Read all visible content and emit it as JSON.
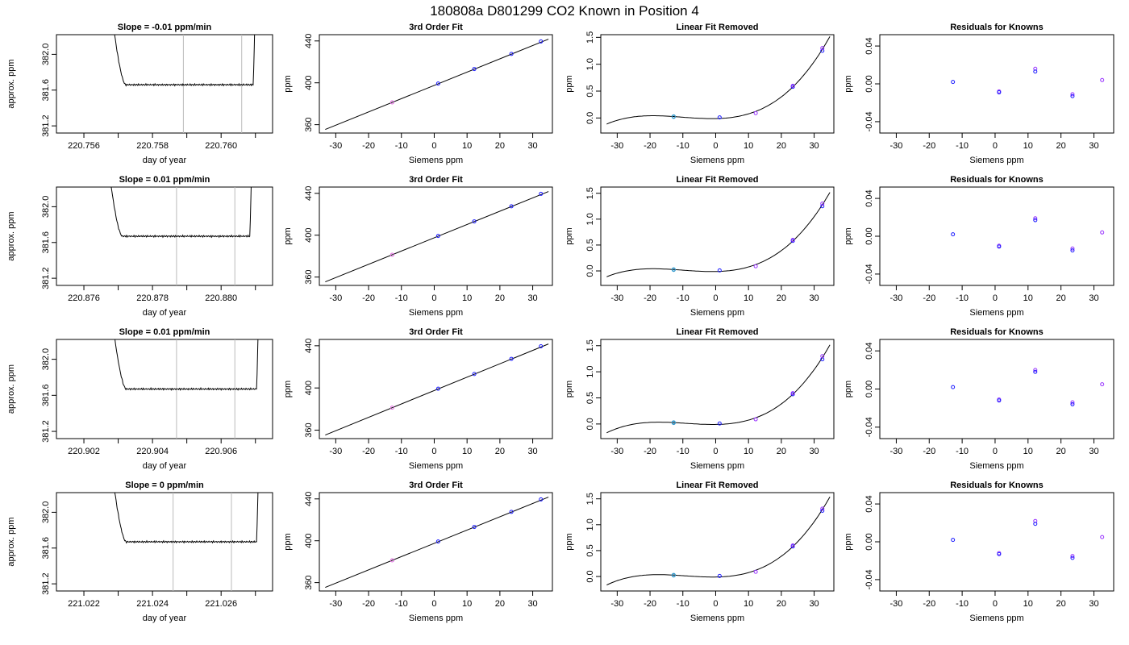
{
  "figure": {
    "title": "180808a      D801299    CO2 Known in Position  4"
  },
  "colors": {
    "axis": "#000000",
    "trace": "#000000",
    "fit_line": "#000000",
    "window_line": "#bbbbbb",
    "point_blue": "#1a1aff",
    "point_purple": "#9933ff",
    "point_magenta": "#e066e0",
    "point_cyan": "#3399cc"
  },
  "chart_data": [
    {
      "type": "line",
      "row": 0,
      "panel": "trace",
      "title": "Slope =  -0.01  ppm/min",
      "xlabel": "day of year",
      "ylabel": "approx. ppm",
      "xlim": [
        220.7552,
        220.7615
      ],
      "ylim": [
        381.12,
        382.22
      ],
      "xticks": [
        220.756,
        220.758,
        220.76
      ],
      "xtick_labels": [
        "220.756",
        "220.758",
        "220.760"
      ],
      "xminor": [
        220.757,
        220.759,
        220.761
      ],
      "yticks": [
        381.2,
        381.6,
        382.0
      ],
      "ytick_labels": [
        "381.2",
        "381.6",
        "382.0"
      ],
      "window": [
        220.7589,
        220.7606
      ],
      "trace_start": 220.7567,
      "trace_end": 220.761,
      "plateau": 381.66
    },
    {
      "type": "line",
      "row": 0,
      "panel": "fit",
      "title": "3rd Order Fit",
      "xlabel": "Siemens ppm",
      "ylabel": "ppm",
      "xlim": [
        -35,
        36
      ],
      "ylim": [
        352,
        446
      ],
      "xticks": [
        -30,
        -20,
        -10,
        0,
        10,
        20,
        30
      ],
      "xtick_labels": [
        "-30",
        "-20",
        "-10",
        "0",
        "10",
        "20",
        "30"
      ],
      "yticks": [
        360,
        400,
        440
      ],
      "ytick_labels": [
        "360",
        "400",
        "440"
      ],
      "x": [
        -12.8,
        1.2,
        12.2,
        23.5,
        32.5
      ],
      "y": [
        381.3,
        399.3,
        413.2,
        427.6,
        439.5
      ],
      "line": [
        [
          -33.2,
          355.4
        ],
        [
          34.8,
          441.7
        ]
      ]
    },
    {
      "type": "line",
      "row": 0,
      "panel": "linear_removed",
      "title": "Linear Fit Removed",
      "xlabel": "Siemens ppm",
      "ylabel": "ppm",
      "xlim": [
        -35,
        36
      ],
      "ylim": [
        -0.28,
        1.55
      ],
      "xticks": [
        -30,
        -20,
        -10,
        0,
        10,
        20,
        30
      ],
      "xtick_labels": [
        "-30",
        "-20",
        "-10",
        "0",
        "10",
        "20",
        "30"
      ],
      "yticks": [
        0.0,
        0.5,
        1.0,
        1.5
      ],
      "ytick_labels": [
        "0.0",
        "0.5",
        "1.0",
        "1.5"
      ],
      "x": [
        -12.8,
        -12.8,
        1.2,
        12.2,
        23.5,
        23.5,
        32.5,
        32.5
      ],
      "y": [
        0.02,
        0.03,
        0.01,
        0.09,
        0.58,
        0.6,
        1.25,
        1.3
      ],
      "curve_range": [
        -33.2,
        34.8
      ]
    },
    {
      "type": "scatter",
      "row": 0,
      "panel": "residuals",
      "title": "Residuals for Knowns",
      "xlabel": "Siemens ppm",
      "ylabel": "ppm",
      "xlim": [
        -35,
        36
      ],
      "ylim": [
        -0.052,
        0.052
      ],
      "xticks": [
        -30,
        -20,
        -10,
        0,
        10,
        20,
        30
      ],
      "xtick_labels": [
        "-30",
        "-20",
        "-10",
        "0",
        "10",
        "20",
        "30"
      ],
      "yticks": [
        -0.04,
        0.0,
        0.04
      ],
      "ytick_labels": [
        "-0.04",
        "0.00",
        "0.04"
      ],
      "x": [
        -12.8,
        1.2,
        1.2,
        12.2,
        12.2,
        23.5,
        23.5,
        32.5
      ],
      "y": [
        0.002,
        -0.008,
        -0.009,
        0.016,
        0.013,
        -0.011,
        -0.013,
        0.004
      ]
    },
    {
      "type": "line",
      "row": 1,
      "panel": "trace",
      "title": "Slope =  0.01  ppm/min",
      "xlabel": "day of year",
      "ylabel": "approx. ppm",
      "xlim": [
        220.8752,
        220.8815
      ],
      "ylim": [
        381.12,
        382.22
      ],
      "xticks": [
        220.876,
        220.878,
        220.88
      ],
      "xtick_labels": [
        "220.876",
        "220.878",
        "220.880"
      ],
      "xminor": [
        220.877,
        220.879,
        220.881
      ],
      "yticks": [
        381.2,
        381.6,
        382.0
      ],
      "ytick_labels": [
        "381.2",
        "381.6",
        "382.0"
      ],
      "window": [
        220.8787,
        220.8804
      ],
      "trace_start": 220.8766,
      "trace_end": 220.8809,
      "plateau": 381.67
    },
    {
      "type": "line",
      "row": 1,
      "panel": "fit",
      "title": "3rd Order Fit",
      "xlabel": "Siemens ppm",
      "ylabel": "ppm",
      "xlim": [
        -35,
        36
      ],
      "ylim": [
        352,
        446
      ],
      "xticks": [
        -30,
        -20,
        -10,
        0,
        10,
        20,
        30
      ],
      "xtick_labels": [
        "-30",
        "-20",
        "-10",
        "0",
        "10",
        "20",
        "30"
      ],
      "yticks": [
        360,
        400,
        440
      ],
      "ytick_labels": [
        "360",
        "400",
        "440"
      ],
      "x": [
        -12.8,
        1.2,
        12.2,
        23.5,
        32.5
      ],
      "y": [
        381.3,
        399.3,
        413.2,
        427.6,
        439.5
      ],
      "line": [
        [
          -33.2,
          355.4
        ],
        [
          34.8,
          441.7
        ]
      ]
    },
    {
      "type": "line",
      "row": 1,
      "panel": "linear_removed",
      "title": "Linear Fit Removed",
      "xlabel": "Siemens ppm",
      "ylabel": "ppm",
      "xlim": [
        -35,
        36
      ],
      "ylim": [
        -0.28,
        1.62
      ],
      "xticks": [
        -30,
        -20,
        -10,
        0,
        10,
        20,
        30
      ],
      "xtick_labels": [
        "-30",
        "-20",
        "-10",
        "0",
        "10",
        "20",
        "30"
      ],
      "yticks": [
        0.0,
        0.5,
        1.0,
        1.5
      ],
      "ytick_labels": [
        "0.0",
        "0.5",
        "1.0",
        "1.5"
      ],
      "x": [
        -12.8,
        -12.8,
        1.2,
        12.2,
        23.5,
        23.5,
        32.5,
        32.5
      ],
      "y": [
        0.02,
        0.03,
        0.01,
        0.09,
        0.58,
        0.6,
        1.25,
        1.3
      ],
      "curve_range": [
        -33.2,
        34.8
      ]
    },
    {
      "type": "scatter",
      "row": 1,
      "panel": "residuals",
      "title": "Residuals for Knowns",
      "xlabel": "Siemens ppm",
      "ylabel": "ppm",
      "xlim": [
        -35,
        36
      ],
      "ylim": [
        -0.052,
        0.052
      ],
      "xticks": [
        -30,
        -20,
        -10,
        0,
        10,
        20,
        30
      ],
      "xtick_labels": [
        "-30",
        "-20",
        "-10",
        "0",
        "10",
        "20",
        "30"
      ],
      "yticks": [
        -0.04,
        0.0,
        0.04
      ],
      "ytick_labels": [
        "-0.04",
        "0.00",
        "0.04"
      ],
      "x": [
        -12.8,
        1.2,
        1.2,
        12.2,
        12.2,
        23.5,
        23.5,
        32.5
      ],
      "y": [
        0.002,
        -0.01,
        -0.011,
        0.019,
        0.017,
        -0.013,
        -0.015,
        0.004
      ]
    },
    {
      "type": "line",
      "row": 2,
      "panel": "trace",
      "title": "Slope =  0.01  ppm/min",
      "xlabel": "day of year",
      "ylabel": "approx. ppm",
      "xlim": [
        220.9012,
        220.9075
      ],
      "ylim": [
        381.12,
        382.22
      ],
      "xticks": [
        220.902,
        220.904,
        220.906
      ],
      "xtick_labels": [
        "220.902",
        "220.904",
        "220.906"
      ],
      "xminor": [
        220.903,
        220.905,
        220.907
      ],
      "yticks": [
        381.2,
        381.6,
        382.0
      ],
      "ytick_labels": [
        "381.2",
        "381.6",
        "382.0"
      ],
      "window": [
        220.9047,
        220.9064
      ],
      "trace_start": 220.9027,
      "trace_end": 220.9071,
      "plateau": 381.67
    },
    {
      "type": "line",
      "row": 2,
      "panel": "fit",
      "title": "3rd Order Fit",
      "xlabel": "Siemens ppm",
      "ylabel": "ppm",
      "xlim": [
        -35,
        36
      ],
      "ylim": [
        352,
        446
      ],
      "xticks": [
        -30,
        -20,
        -10,
        0,
        10,
        20,
        30
      ],
      "xtick_labels": [
        "-30",
        "-20",
        "-10",
        "0",
        "10",
        "20",
        "30"
      ],
      "yticks": [
        360,
        400,
        440
      ],
      "ytick_labels": [
        "360",
        "400",
        "440"
      ],
      "x": [
        -12.8,
        1.2,
        12.2,
        23.5,
        32.5
      ],
      "y": [
        381.3,
        399.3,
        413.2,
        427.6,
        439.5
      ],
      "line": [
        [
          -33.2,
          355.4
        ],
        [
          34.8,
          441.7
        ]
      ]
    },
    {
      "type": "line",
      "row": 2,
      "panel": "linear_removed",
      "title": "Linear Fit Removed",
      "xlabel": "Siemens ppm",
      "ylabel": "ppm",
      "xlim": [
        -35,
        36
      ],
      "ylim": [
        -0.28,
        1.62
      ],
      "xticks": [
        -30,
        -20,
        -10,
        0,
        10,
        20,
        30
      ],
      "xtick_labels": [
        "-30",
        "-20",
        "-10",
        "0",
        "10",
        "20",
        "30"
      ],
      "yticks": [
        0.0,
        0.5,
        1.0,
        1.5
      ],
      "ytick_labels": [
        "0.0",
        "0.5",
        "1.0",
        "1.5"
      ],
      "x": [
        -12.8,
        -12.8,
        1.2,
        12.2,
        23.5,
        23.5,
        32.5,
        32.5
      ],
      "y": [
        0.02,
        0.03,
        0.01,
        0.09,
        0.57,
        0.59,
        1.24,
        1.3
      ],
      "curve_range": [
        -33.2,
        34.8
      ]
    },
    {
      "type": "scatter",
      "row": 2,
      "panel": "residuals",
      "title": "Residuals for Knowns",
      "xlabel": "Siemens ppm",
      "ylabel": "ppm",
      "xlim": [
        -35,
        36
      ],
      "ylim": [
        -0.052,
        0.052
      ],
      "xticks": [
        -30,
        -20,
        -10,
        0,
        10,
        20,
        30
      ],
      "xtick_labels": [
        "-30",
        "-20",
        "-10",
        "0",
        "10",
        "20",
        "30"
      ],
      "yticks": [
        -0.04,
        0.0,
        0.04
      ],
      "ytick_labels": [
        "-0.04",
        "0.00",
        "0.04"
      ],
      "x": [
        -12.8,
        1.2,
        1.2,
        12.2,
        12.2,
        23.5,
        23.5,
        32.5
      ],
      "y": [
        0.002,
        -0.011,
        -0.012,
        0.02,
        0.018,
        -0.014,
        -0.016,
        0.005
      ]
    },
    {
      "type": "line",
      "row": 3,
      "panel": "trace",
      "title": "Slope =  0  ppm/min",
      "xlabel": "day of year",
      "ylabel": "approx. ppm",
      "xlim": [
        221.0212,
        221.0275
      ],
      "ylim": [
        381.12,
        382.22
      ],
      "xticks": [
        221.022,
        221.024,
        221.026
      ],
      "xtick_labels": [
        "221.022",
        "221.024",
        "221.026"
      ],
      "xminor": [
        221.023,
        221.025,
        221.027
      ],
      "yticks": [
        381.2,
        381.6,
        382.0
      ],
      "ytick_labels": [
        "381.2",
        "381.6",
        "382.0"
      ],
      "window": [
        221.0246,
        221.0263
      ],
      "trace_start": 221.0227,
      "trace_end": 221.0271,
      "plateau": 381.67
    },
    {
      "type": "line",
      "row": 3,
      "panel": "fit",
      "title": "3rd Order Fit",
      "xlabel": "Siemens ppm",
      "ylabel": "ppm",
      "xlim": [
        -35,
        36
      ],
      "ylim": [
        352,
        446
      ],
      "xticks": [
        -30,
        -20,
        -10,
        0,
        10,
        20,
        30
      ],
      "xtick_labels": [
        "-30",
        "-20",
        "-10",
        "0",
        "10",
        "20",
        "30"
      ],
      "yticks": [
        360,
        400,
        440
      ],
      "ytick_labels": [
        "360",
        "400",
        "440"
      ],
      "x": [
        -12.8,
        1.2,
        12.2,
        23.5,
        32.5
      ],
      "y": [
        381.3,
        399.3,
        413.2,
        427.6,
        439.5
      ],
      "line": [
        [
          -33.2,
          355.4
        ],
        [
          34.8,
          441.7
        ]
      ]
    },
    {
      "type": "line",
      "row": 3,
      "panel": "linear_removed",
      "title": "Linear Fit Removed",
      "xlabel": "Siemens ppm",
      "ylabel": "ppm",
      "xlim": [
        -35,
        36
      ],
      "ylim": [
        -0.28,
        1.62
      ],
      "xticks": [
        -30,
        -20,
        -10,
        0,
        10,
        20,
        30
      ],
      "xtick_labels": [
        "-30",
        "-20",
        "-10",
        "0",
        "10",
        "20",
        "30"
      ],
      "yticks": [
        0.0,
        0.5,
        1.0,
        1.5
      ],
      "ytick_labels": [
        "0.0",
        "0.5",
        "1.0",
        "1.5"
      ],
      "x": [
        -12.8,
        -12.8,
        1.2,
        12.2,
        23.5,
        23.5,
        32.5,
        32.5
      ],
      "y": [
        0.02,
        0.03,
        0.01,
        0.09,
        0.58,
        0.6,
        1.27,
        1.31
      ],
      "curve_range": [
        -33.2,
        34.8
      ]
    },
    {
      "type": "scatter",
      "row": 3,
      "panel": "residuals",
      "title": "Residuals for Knowns",
      "xlabel": "Siemens ppm",
      "ylabel": "ppm",
      "xlim": [
        -35,
        36
      ],
      "ylim": [
        -0.052,
        0.052
      ],
      "xticks": [
        -30,
        -20,
        -10,
        0,
        10,
        20,
        30
      ],
      "xtick_labels": [
        "-30",
        "-20",
        "-10",
        "0",
        "10",
        "20",
        "30"
      ],
      "yticks": [
        -0.04,
        0.0,
        0.04
      ],
      "ytick_labels": [
        "-0.04",
        "0.00",
        "0.04"
      ],
      "x": [
        -12.8,
        1.2,
        1.2,
        12.2,
        12.2,
        23.5,
        23.5,
        32.5
      ],
      "y": [
        0.002,
        -0.012,
        -0.013,
        0.022,
        0.019,
        -0.015,
        -0.017,
        0.005
      ]
    }
  ]
}
